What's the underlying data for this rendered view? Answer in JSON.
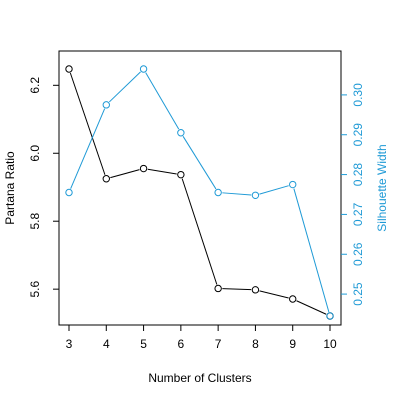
{
  "chart_data": {
    "type": "line",
    "xlabel": "Number of Clusters",
    "x": [
      3,
      4,
      5,
      6,
      7,
      8,
      9,
      10
    ],
    "x_ticks": [
      "3",
      "4",
      "5",
      "6",
      "7",
      "8",
      "9",
      "10"
    ],
    "xlim": [
      3,
      10
    ],
    "grid": false,
    "series": [
      {
        "name": "Partana Ratio",
        "axis": "left",
        "color": "#000000",
        "marker": "open-circle",
        "values": [
          6.248,
          5.925,
          5.955,
          5.937,
          5.602,
          5.598,
          5.571,
          5.521
        ]
      },
      {
        "name": "Silhouette Width",
        "axis": "right",
        "color": "#1f9ad6",
        "marker": "open-circle",
        "values": [
          0.2755,
          0.2975,
          0.3065,
          0.2905,
          0.2755,
          0.2748,
          0.2775,
          0.2445
        ]
      }
    ],
    "y_left": {
      "label": "Partana Ratio",
      "lim": [
        5.521,
        6.248
      ],
      "ticks": [
        5.6,
        5.8,
        6.0,
        6.2
      ],
      "tick_labels": [
        "5.6",
        "5.8",
        "6.0",
        "6.2"
      ]
    },
    "y_right": {
      "label": "Silhouette Width",
      "lim": [
        0.2445,
        0.3065
      ],
      "ticks": [
        0.25,
        0.26,
        0.27,
        0.28,
        0.29,
        0.3
      ],
      "tick_labels": [
        "0.25",
        "0.26",
        "0.27",
        "0.28",
        "0.29",
        "0.30"
      ]
    }
  }
}
